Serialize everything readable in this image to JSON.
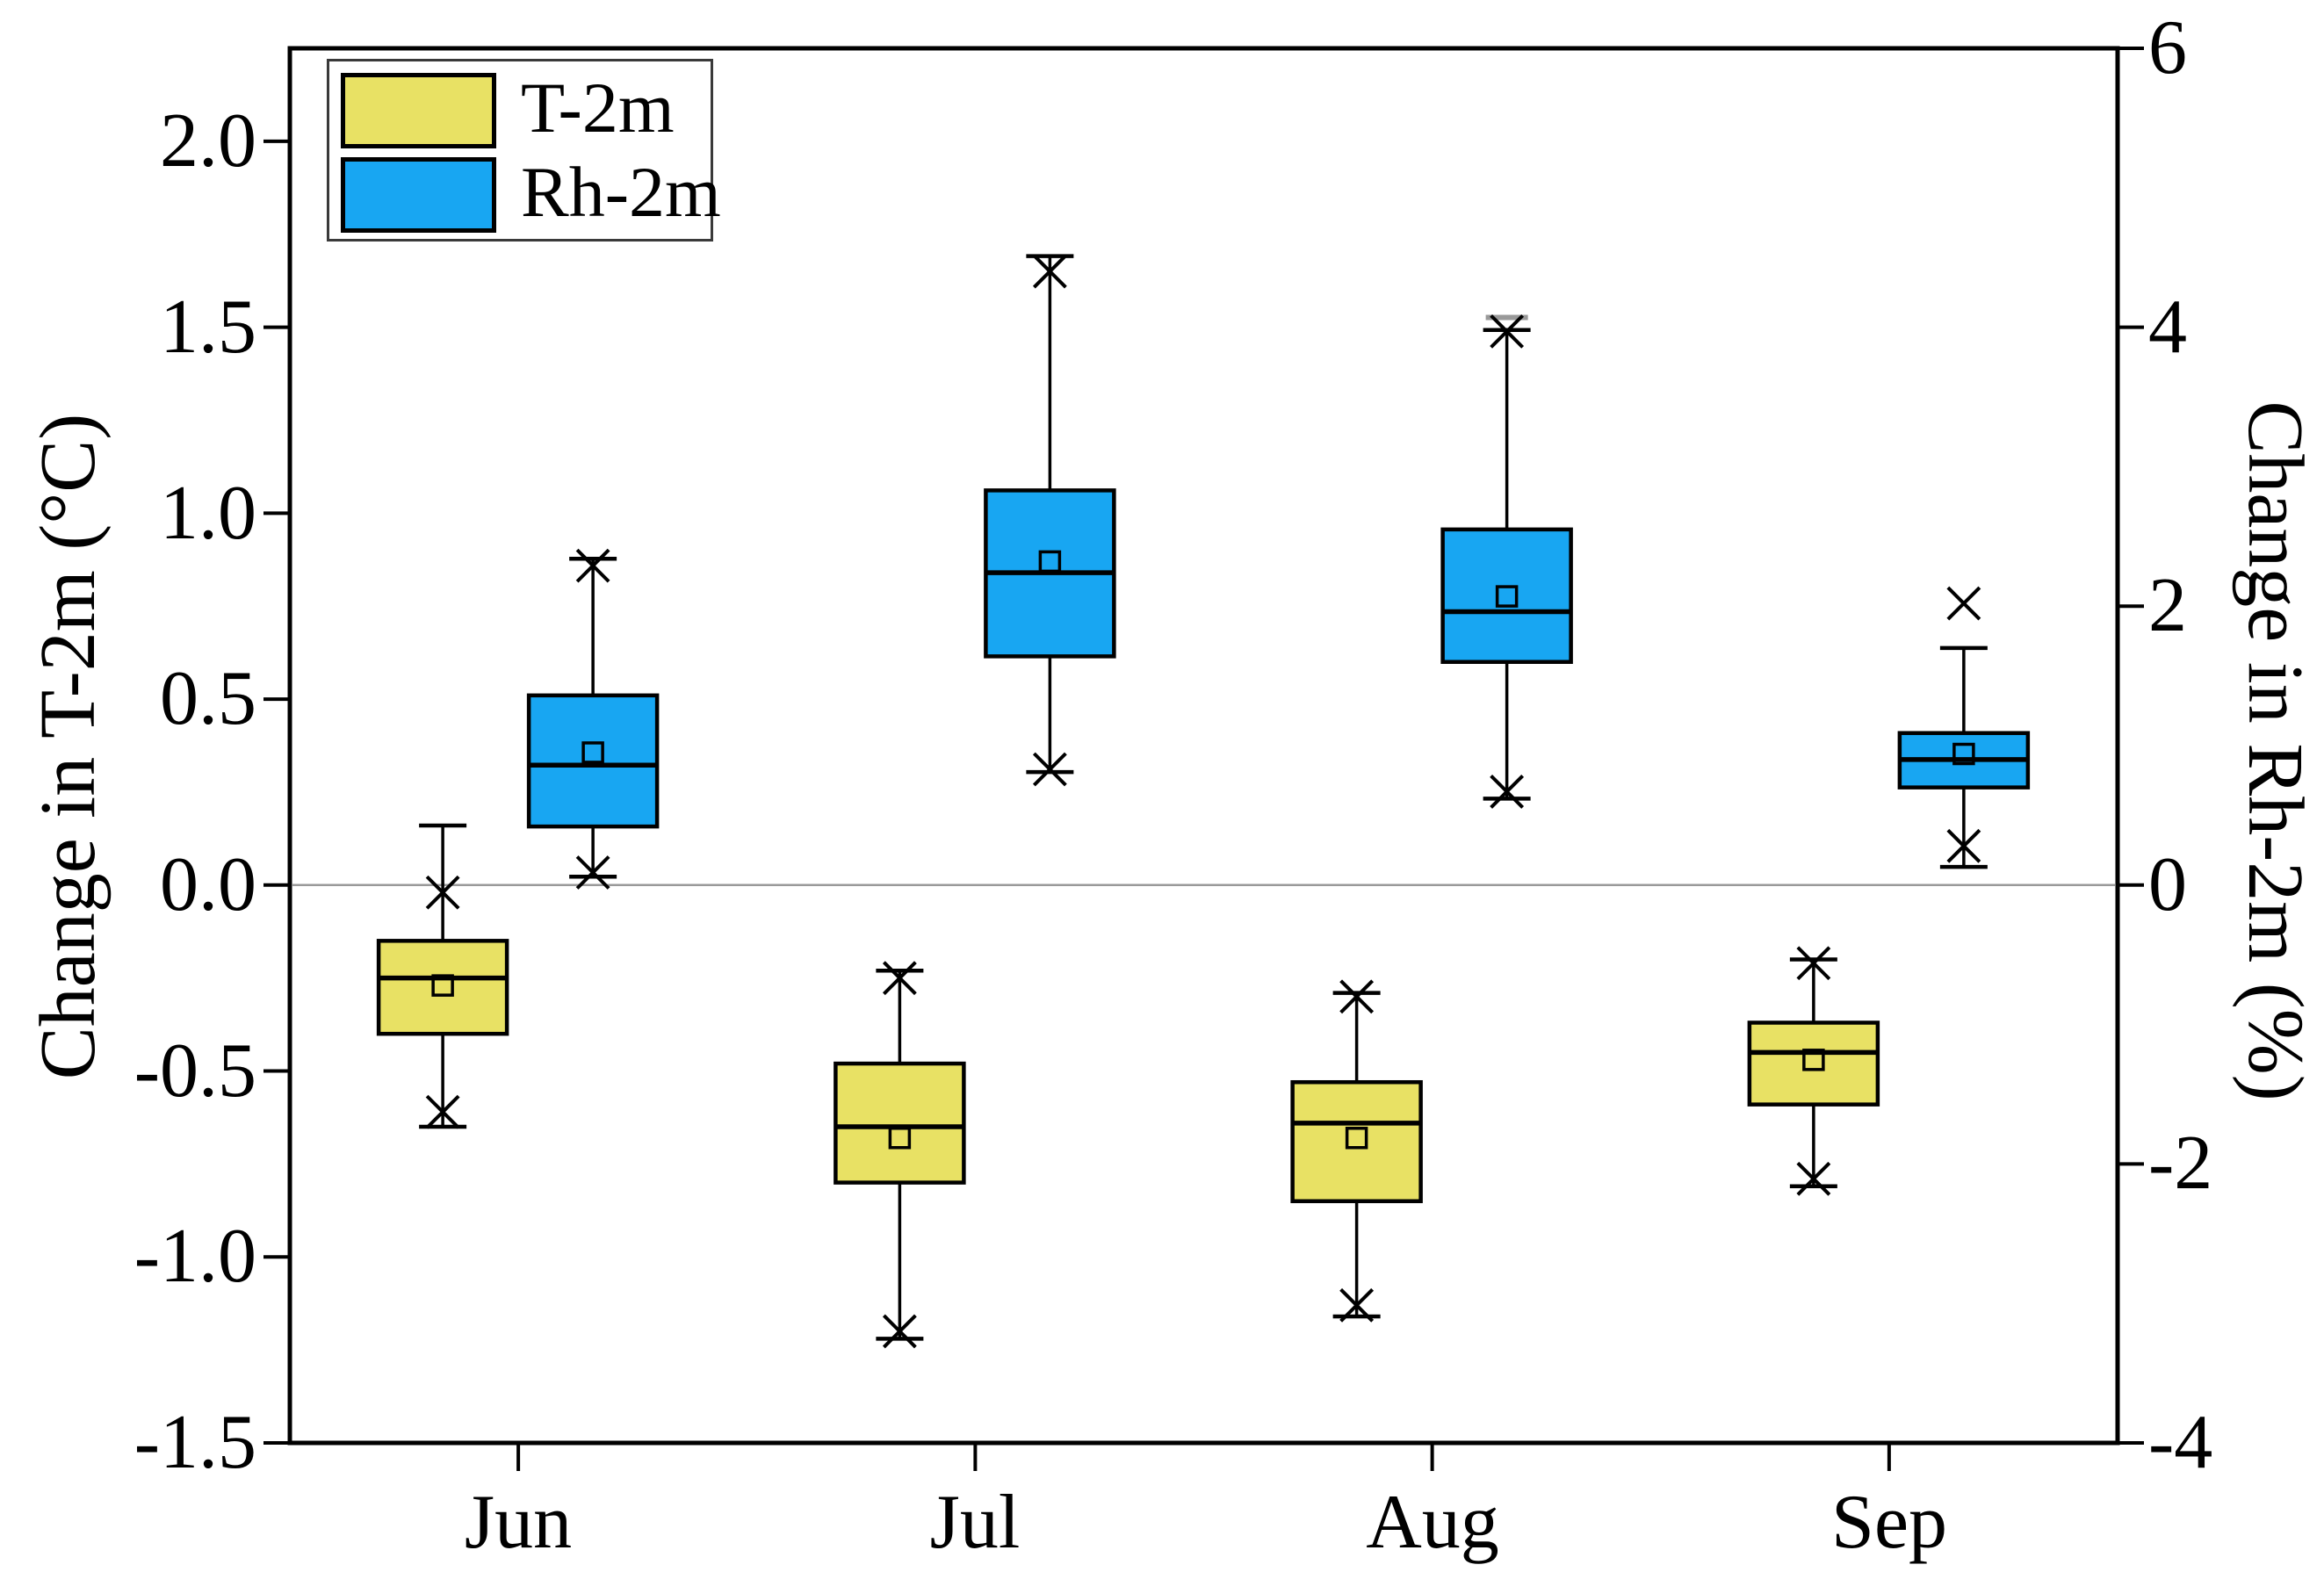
{
  "legend": {
    "items": [
      {
        "label": "T-2m",
        "color": "#E8E164"
      },
      {
        "label": "Rh-2m",
        "color": "#18A6F2"
      }
    ]
  },
  "chart_data": {
    "type": "boxplot",
    "title": "",
    "categories": [
      "Jun",
      "Jul",
      "Aug",
      "Sep"
    ],
    "grid": false,
    "legend_position": "top-left",
    "zero_line": {
      "show": true,
      "color": "#999999"
    },
    "frame_color": "#000000",
    "axes": {
      "left": {
        "label": "Change in T-2m (°C)",
        "min": -1.5,
        "max": 2.25,
        "tick_values": [
          2.0,
          1.5,
          1.0,
          0.5,
          0.0,
          -0.5,
          -1.0,
          -1.5
        ],
        "tick_labels": [
          "2.0",
          "1.5",
          "1.0",
          "0.5",
          "0.0",
          "-0.5",
          "-1.0",
          "-1.5"
        ]
      },
      "right": {
        "label": "Change in Rh-2m (%)",
        "min": -4,
        "max": 6,
        "tick_values": [
          6,
          4,
          2,
          0,
          -2,
          -4
        ],
        "tick_labels": [
          "6",
          "4",
          "2",
          "0",
          "-2",
          "-4"
        ]
      },
      "x": {
        "labels": [
          "Jun",
          "Jul",
          "Aug",
          "Sep"
        ]
      }
    },
    "series": [
      {
        "name": "T-2m",
        "axis": "left",
        "unit": "°C",
        "color": "#E8E164",
        "offset": -86,
        "boxes": [
          {
            "category": "Jun",
            "whisker_high": 0.16,
            "x_high": -0.02,
            "q3": -0.15,
            "median": -0.25,
            "mean": -0.27,
            "q1": -0.4,
            "x_low": -0.61,
            "whisker_low": -0.65
          },
          {
            "category": "Jul",
            "whisker_high": -0.23,
            "x_high": -0.25,
            "q3": -0.48,
            "median": -0.65,
            "mean": -0.68,
            "q1": -0.8,
            "x_low": -1.2,
            "whisker_low": -1.22
          },
          {
            "category": "Aug",
            "whisker_high": -0.29,
            "x_high": -0.3,
            "q3": -0.53,
            "median": -0.64,
            "mean": -0.68,
            "q1": -0.85,
            "x_low": -1.13,
            "whisker_low": -1.16
          },
          {
            "category": "Sep",
            "whisker_high": -0.2,
            "x_high": -0.21,
            "q3": -0.37,
            "median": -0.45,
            "mean": -0.47,
            "q1": -0.59,
            "x_low": -0.79,
            "whisker_low": -0.81
          }
        ]
      },
      {
        "name": "Rh-2m",
        "axis": "right",
        "unit": "%",
        "color": "#18A6F2",
        "offset": 85,
        "boxes": [
          {
            "category": "Jun",
            "whisker_high": 2.34,
            "x_high": 2.29,
            "q3": 1.36,
            "median": 0.86,
            "mean": 0.95,
            "q1": 0.42,
            "x_low": 0.09,
            "whisker_low": 0.06
          },
          {
            "category": "Jul",
            "whisker_high": 4.51,
            "x_high": 4.4,
            "q3": 2.83,
            "median": 2.24,
            "mean": 2.32,
            "q1": 1.64,
            "x_low": 0.83,
            "whisker_low": 0.81
          },
          {
            "category": "Aug",
            "whisker_high": 3.98,
            "x_high": 3.97,
            "q3": 2.55,
            "median": 1.96,
            "mean": 2.07,
            "q1": 1.6,
            "x_low": 0.67,
            "whisker_low": 0.62,
            "dash_high": 4.07
          },
          {
            "category": "Sep",
            "whisker_high": 1.7,
            "x_high": 2.02,
            "q3": 1.09,
            "median": 0.9,
            "mean": 0.94,
            "q1": 0.7,
            "x_low": 0.28,
            "whisker_low": 0.13
          }
        ]
      }
    ]
  }
}
